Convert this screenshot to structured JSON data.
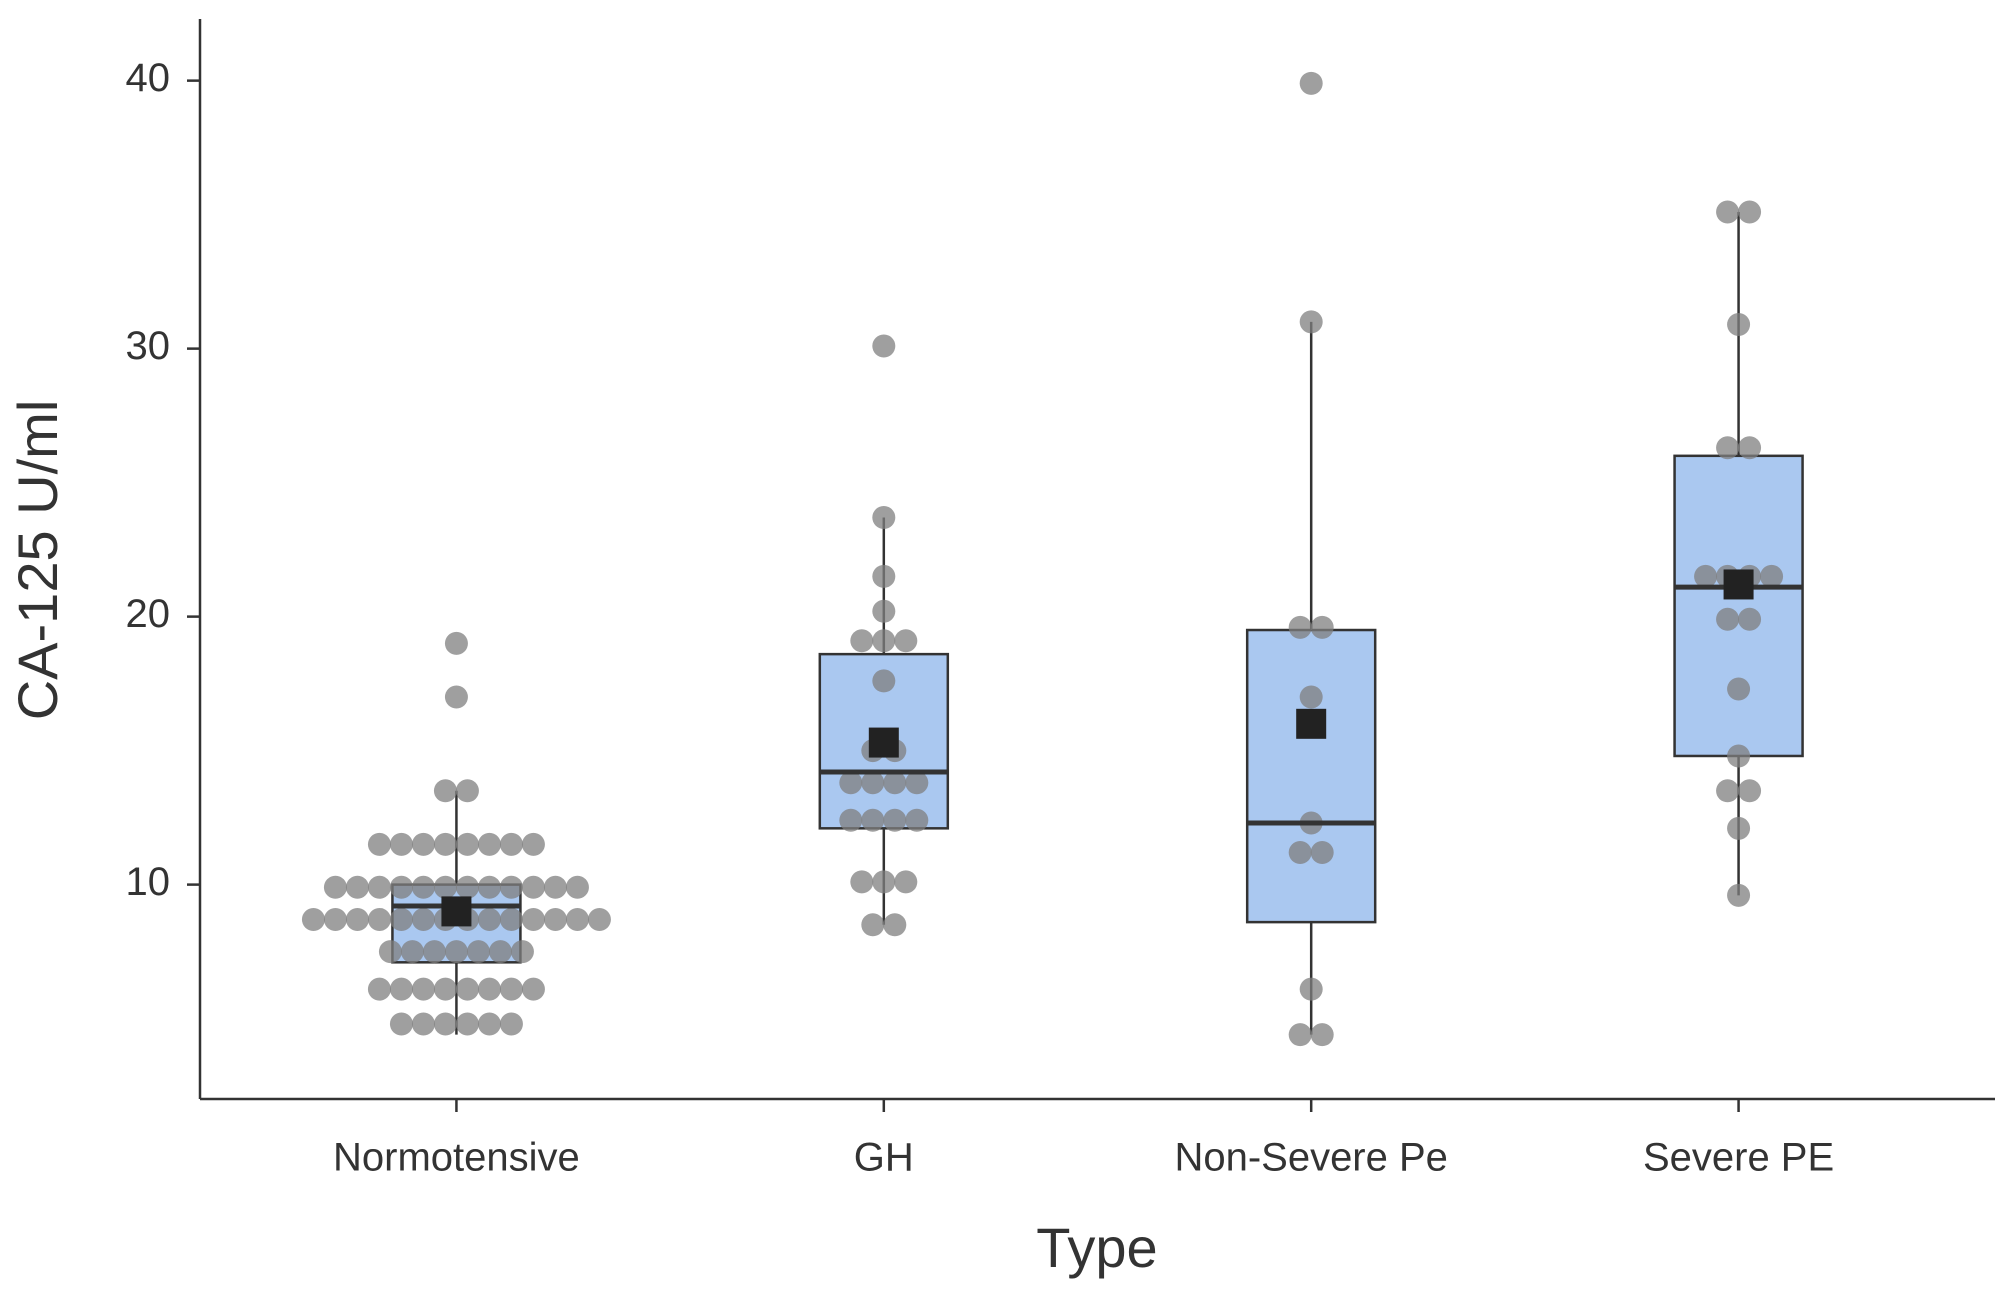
{
  "chart_data": {
    "type": "box",
    "x_label": "Type",
    "y_label": "CA-125 U/ml",
    "categories": [
      "Normotensive",
      "GH",
      "Non-Severe Pe",
      "Severe PE"
    ],
    "boxes": [
      {
        "whislo": 4.4,
        "q1": 7.1,
        "med": 9.2,
        "q3": 10.0,
        "whishi": 13.5,
        "mean": 9.0,
        "points": [
          19,
          17,
          13.5,
          13.5,
          11.5,
          11.5,
          11.5,
          11.5,
          11.5,
          11.5,
          11.5,
          11.5,
          9.9,
          9.9,
          9.9,
          9.9,
          9.9,
          9.9,
          9.9,
          9.9,
          9.9,
          9.9,
          9.9,
          9.9,
          8.7,
          8.7,
          8.7,
          8.7,
          8.7,
          8.7,
          8.7,
          8.7,
          8.7,
          8.7,
          8.7,
          8.7,
          8.7,
          8.7,
          7.5,
          7.5,
          7.5,
          7.5,
          7.5,
          7.5,
          7.5,
          6.1,
          6.1,
          6.1,
          6.1,
          6.1,
          6.1,
          6.1,
          6.1,
          4.8,
          4.8,
          4.8,
          4.8,
          4.8,
          4.8
        ]
      },
      {
        "whislo": 8.5,
        "q1": 12.1,
        "med": 14.2,
        "q3": 18.6,
        "whishi": 23.7,
        "mean": 15.3,
        "points": [
          30.1,
          23.7,
          21.5,
          20.2,
          19.1,
          19.1,
          19.1,
          17.6,
          15,
          15,
          13.8,
          13.8,
          13.8,
          13.8,
          12.4,
          12.4,
          12.4,
          12.4,
          10.1,
          10.1,
          10.1,
          8.5,
          8.5
        ]
      },
      {
        "whislo": 4.4,
        "q1": 8.6,
        "med": 12.3,
        "q3": 19.5,
        "whishi": 31.0,
        "mean": 16.0,
        "points": [
          39.9,
          31,
          19.6,
          19.6,
          17,
          12.3,
          11.2,
          11.2,
          6.1,
          4.4,
          4.4
        ]
      },
      {
        "whislo": 9.6,
        "q1": 14.8,
        "med": 21.1,
        "q3": 26.0,
        "whishi": 35.1,
        "mean": 21.2,
        "points": [
          35.1,
          35.1,
          30.9,
          26.3,
          26.3,
          21.5,
          21.5,
          21.5,
          21.5,
          19.9,
          19.9,
          17.3,
          14.8,
          13.5,
          13.5,
          12.1,
          9.6
        ]
      }
    ],
    "box_color": "#aac8f0",
    "line_color": "#333333",
    "point_color": "#7f7f7f",
    "mean_color": "#222222",
    "ylim": [
      2,
      42.3
    ],
    "yticks": [
      10,
      20,
      30,
      40
    ],
    "grid": false
  }
}
